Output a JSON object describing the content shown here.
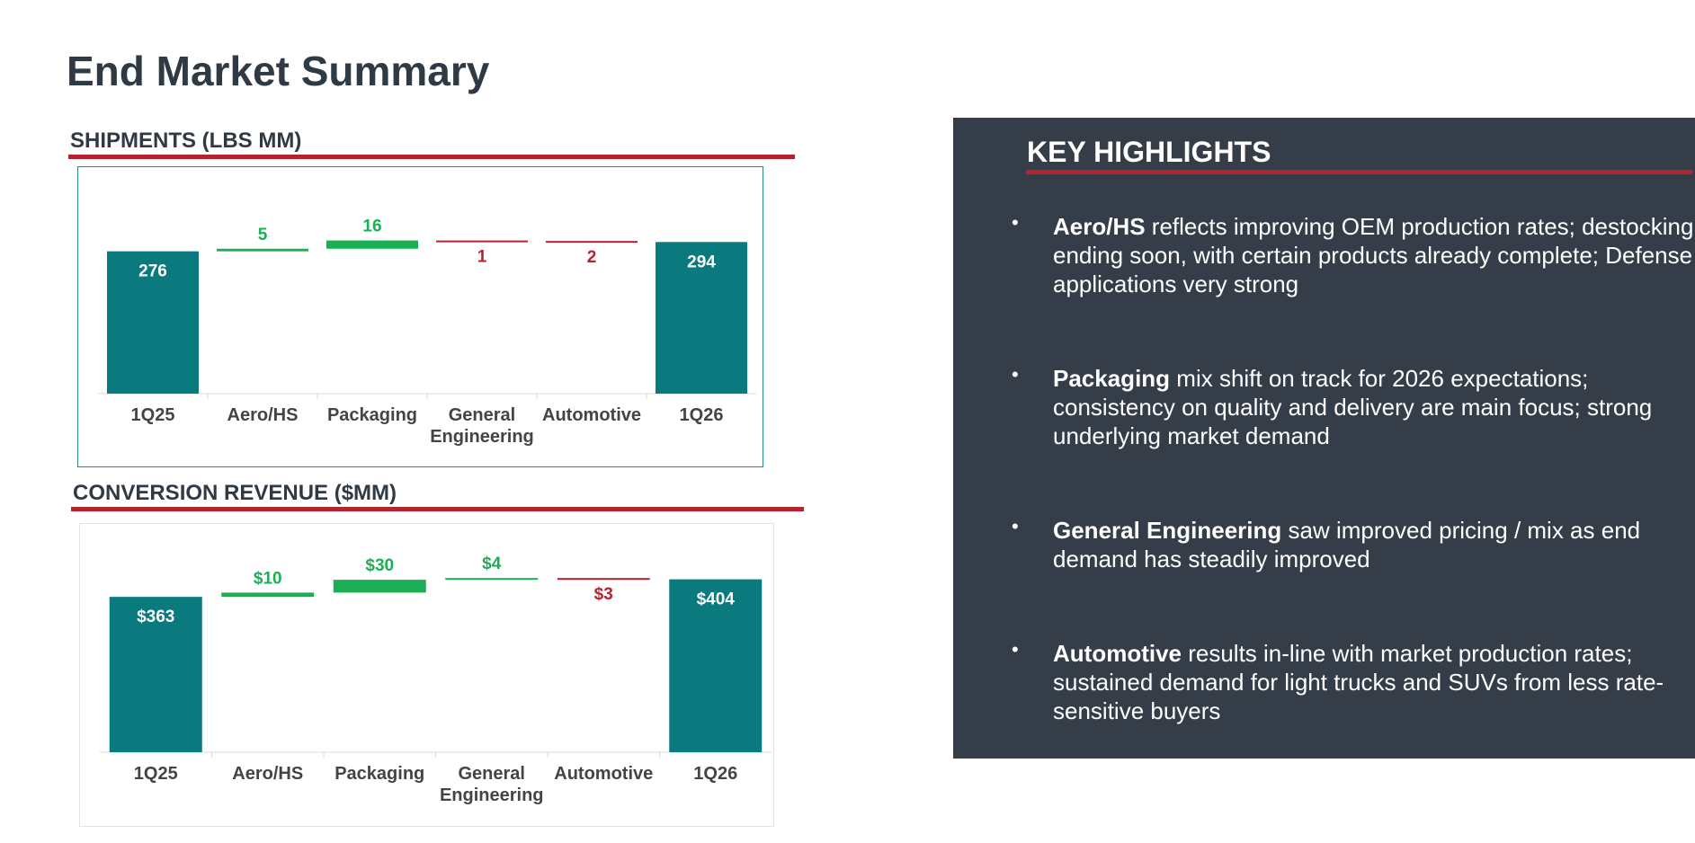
{
  "page": {
    "title": "End Market Summary"
  },
  "colors": {
    "bar_total": "#0a7a7f",
    "bar_increase": "#1aaf54",
    "bar_decrease": "#b5232f",
    "label_increase": "#1aaf54",
    "label_decrease": "#b5232f",
    "label_total": "#ffffff",
    "accent_rule": "#b5232f",
    "panel_bg": "#353e48",
    "heading_text": "#2f3a45"
  },
  "chart_data": [
    {
      "type": "bar",
      "subtype": "waterfall",
      "title": "SHIPMENTS (LBS MM)",
      "categories": [
        "1Q25",
        "Aero/HS",
        "Packaging",
        "General\nEngineering",
        "Automotive",
        "1Q26"
      ],
      "values": [
        276,
        5,
        16,
        -1,
        -2,
        294
      ],
      "kinds": [
        "total",
        "delta",
        "delta",
        "delta",
        "delta",
        "total"
      ],
      "labels": [
        "276",
        "5",
        "16",
        "1",
        "2",
        "294"
      ],
      "ylim": [
        0,
        305
      ],
      "grid": false
    },
    {
      "type": "bar",
      "subtype": "waterfall",
      "title": "CONVERSION REVENUE ($MM)",
      "categories": [
        "1Q25",
        "Aero/HS",
        "Packaging",
        "General\nEngineering",
        "Automotive",
        "1Q26"
      ],
      "values": [
        363,
        10,
        30,
        4,
        -3,
        404
      ],
      "kinds": [
        "total",
        "delta",
        "delta",
        "delta",
        "delta",
        "total"
      ],
      "labels": [
        "$363",
        "$10",
        "$30",
        "$4",
        "$3",
        "$404"
      ],
      "ylim": [
        0,
        420
      ],
      "grid": false
    }
  ],
  "highlights": {
    "title": "KEY HIGHLIGHTS",
    "items": [
      {
        "bold": "Aero/HS",
        "text": " reflects improving OEM production rates; destocking ending soon, with certain products already complete; Defense applications very strong"
      },
      {
        "bold": "Packaging",
        "text": " mix shift on track for 2026 expectations; consistency on quality and delivery are main focus; strong underlying market demand"
      },
      {
        "bold": "General Engineering",
        "text": " saw improved pricing / mix as end demand has steadily improved"
      },
      {
        "bold": "Automotive",
        "text": " results in-line with market production rates; sustained demand for light trucks and SUVs from less rate-sensitive buyers"
      }
    ]
  }
}
